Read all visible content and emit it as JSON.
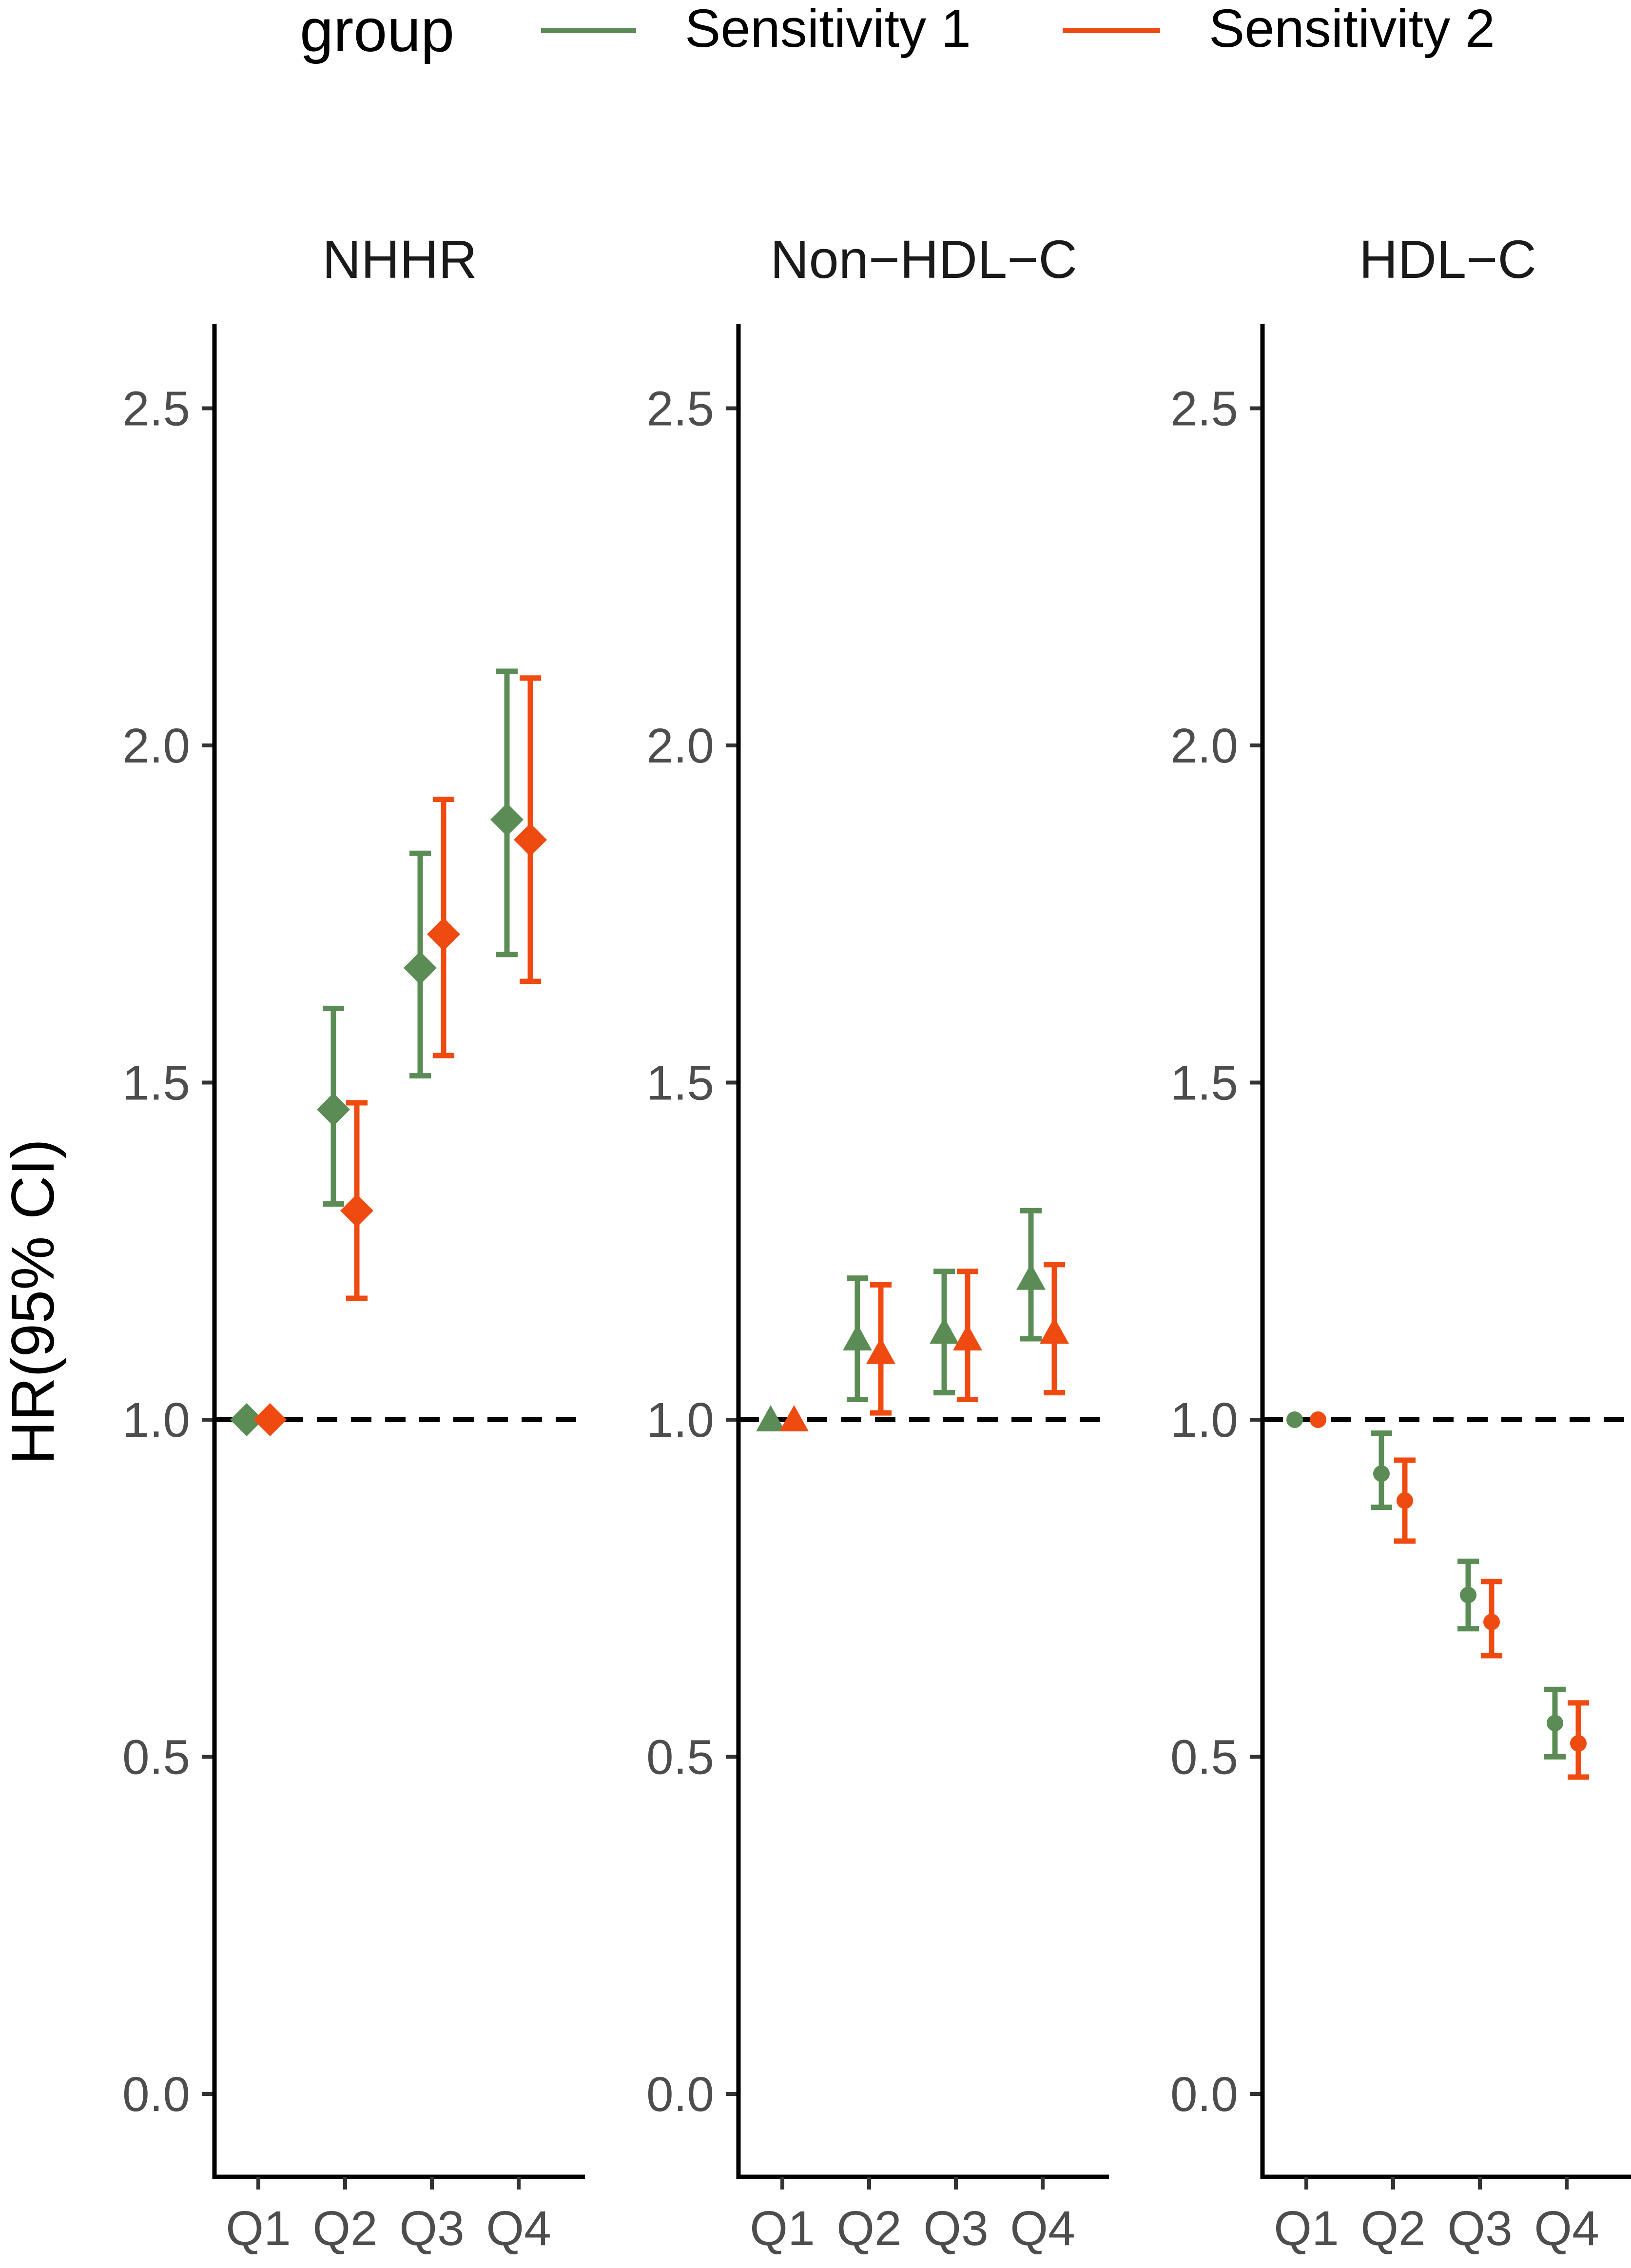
{
  "chart_data": {
    "type": "errorbar",
    "ylabel": "HR(95% CI)",
    "ylim": [
      -0.1,
      2.6
    ],
    "yticks": [
      "0.0",
      "0.5",
      "1.0",
      "1.5",
      "2.0",
      "2.5"
    ],
    "reference_line": 1.0,
    "categories": [
      "Q1",
      "Q2",
      "Q3",
      "Q4"
    ],
    "legend": {
      "title": "group",
      "position": "top",
      "entries": [
        {
          "name": "Sensitivity 1",
          "color": "#5b8c55"
        },
        {
          "name": "Sensitivity 2",
          "color": "#ef4a10"
        }
      ]
    },
    "panels": [
      {
        "title": "NHHR",
        "marker": "diamond",
        "series": [
          {
            "name": "Sensitivity 1",
            "hr": [
              1.0,
              1.46,
              1.67,
              1.89
            ],
            "lower": [
              1.0,
              1.32,
              1.51,
              1.69
            ],
            "upper": [
              1.0,
              1.61,
              1.84,
              2.11
            ]
          },
          {
            "name": "Sensitivity 2",
            "hr": [
              1.0,
              1.31,
              1.72,
              1.86
            ],
            "lower": [
              1.0,
              1.18,
              1.54,
              1.65
            ],
            "upper": [
              1.0,
              1.47,
              1.92,
              2.1
            ]
          }
        ]
      },
      {
        "title": "Non−HDL−C",
        "marker": "triangle",
        "series": [
          {
            "name": "Sensitivity 1",
            "hr": [
              1.0,
              1.12,
              1.13,
              1.21
            ],
            "lower": [
              1.0,
              1.03,
              1.04,
              1.12
            ],
            "upper": [
              1.0,
              1.21,
              1.22,
              1.31
            ]
          },
          {
            "name": "Sensitivity 2",
            "hr": [
              1.0,
              1.1,
              1.12,
              1.13
            ],
            "lower": [
              1.0,
              1.01,
              1.03,
              1.04
            ],
            "upper": [
              1.0,
              1.2,
              1.22,
              1.23
            ]
          }
        ]
      },
      {
        "title": "HDL−C",
        "marker": "circle",
        "series": [
          {
            "name": "Sensitivity 1",
            "hr": [
              1.0,
              0.92,
              0.74,
              0.55
            ],
            "lower": [
              1.0,
              0.87,
              0.69,
              0.5
            ],
            "upper": [
              1.0,
              0.98,
              0.79,
              0.6
            ]
          },
          {
            "name": "Sensitivity 2",
            "hr": [
              1.0,
              0.88,
              0.7,
              0.52
            ],
            "lower": [
              1.0,
              0.82,
              0.65,
              0.47
            ],
            "upper": [
              1.0,
              0.94,
              0.76,
              0.58
            ]
          }
        ]
      }
    ]
  }
}
